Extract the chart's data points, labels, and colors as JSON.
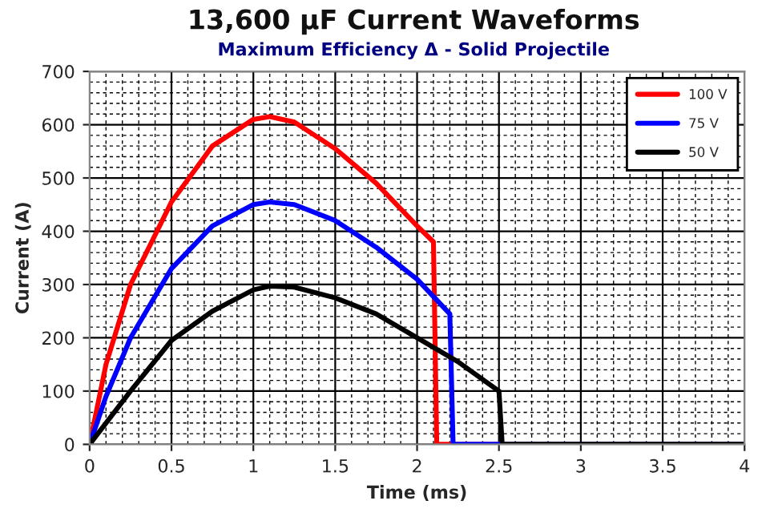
{
  "chart_data": {
    "type": "line",
    "title": "13,600 µF Current Waveforms",
    "subtitle": "Maximum Efficiency Δ - Solid Projectile",
    "xlabel": "Time (ms)",
    "ylabel": "Current (A)",
    "xlim": [
      0,
      4
    ],
    "ylim": [
      0,
      700
    ],
    "xticks": [
      0,
      0.5,
      1,
      1.5,
      2,
      2.5,
      3,
      3.5,
      4
    ],
    "yticks": [
      0,
      100,
      200,
      300,
      400,
      500,
      600,
      700
    ],
    "grid": true,
    "legend": "top right",
    "marker": "none",
    "line_style": "solid",
    "series": [
      {
        "name": "100 V",
        "color": "#ff0000",
        "x": [
          0,
          0.1,
          0.25,
          0.5,
          0.75,
          1.0,
          1.1,
          1.25,
          1.5,
          1.75,
          2.0,
          2.1,
          2.12,
          4
        ],
        "values": [
          0,
          150,
          300,
          455,
          560,
          610,
          615,
          605,
          555,
          490,
          410,
          380,
          0,
          0
        ]
      },
      {
        "name": "75 V",
        "color": "#0000ff",
        "x": [
          0,
          0.1,
          0.25,
          0.5,
          0.75,
          1.0,
          1.1,
          1.25,
          1.5,
          1.75,
          2.0,
          2.2,
          2.22,
          4
        ],
        "values": [
          0,
          90,
          200,
          330,
          410,
          450,
          455,
          450,
          420,
          370,
          310,
          245,
          0,
          0
        ]
      },
      {
        "name": "50 V",
        "color": "#000000",
        "x": [
          0,
          0.25,
          0.5,
          0.75,
          1.0,
          1.1,
          1.25,
          1.5,
          1.75,
          2.0,
          2.25,
          2.5,
          2.52,
          4
        ],
        "values": [
          0,
          100,
          195,
          250,
          290,
          297,
          295,
          275,
          245,
          200,
          155,
          100,
          0,
          0
        ]
      }
    ]
  }
}
